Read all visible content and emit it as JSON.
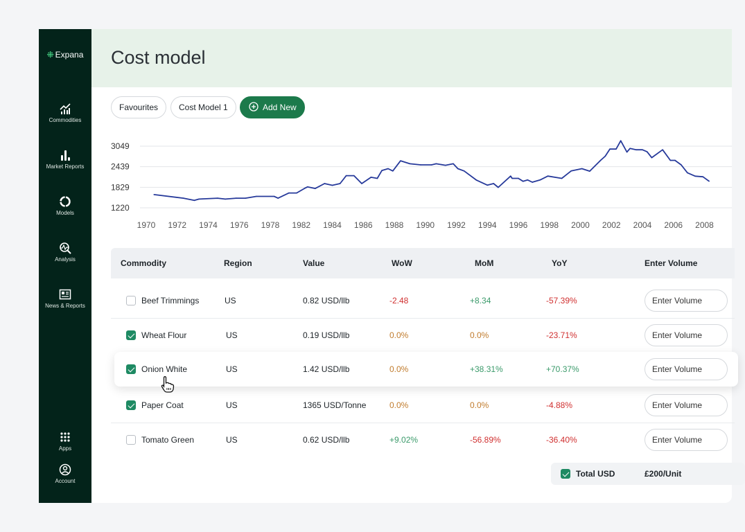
{
  "brand": {
    "name": "Expana"
  },
  "sidebar": {
    "items": [
      {
        "label": "Commodities",
        "icon": "chart-line-bars-icon"
      },
      {
        "label": "Market Reports",
        "icon": "bar-chart-icon"
      },
      {
        "label": "Models",
        "icon": "donut-icon"
      },
      {
        "label": "Analysis",
        "icon": "magnify-pulse-icon"
      },
      {
        "label": "News & Reports",
        "icon": "newspaper-icon"
      }
    ],
    "bottom": [
      {
        "label": "Apps",
        "icon": "grid-icon"
      },
      {
        "label": "Account",
        "icon": "user-circle-icon"
      }
    ]
  },
  "header": {
    "title": "Cost model"
  },
  "tabs": [
    {
      "label": "Favourites"
    },
    {
      "label": "Cost Model 1"
    }
  ],
  "add_new_label": "Add New",
  "colors": {
    "sidebar": "#03231a",
    "accent": "#1c7a4b",
    "line": "#26399a",
    "negative": "#d03030",
    "positive": "#3a9a6a",
    "neutral": "#c07b2c"
  },
  "chart_data": {
    "type": "line",
    "title": "",
    "xlabel": "",
    "ylabel": "",
    "y_ticks": [
      1220,
      1829,
      2439,
      3049
    ],
    "x_ticks": [
      "1970",
      "1972",
      "1974",
      "1976",
      "1978",
      "1982",
      "1984",
      "1986",
      "1988",
      "1990",
      "1992",
      "1994",
      "1996",
      "1998",
      "2000",
      "2002",
      "2004",
      "2006",
      "2008"
    ],
    "grid": true,
    "series": [
      {
        "x": [
          1970.5,
          1972.4,
          1973.1,
          1973.4,
          1974.6,
          1975.1,
          1975.8,
          1976.4,
          1977.1,
          1978.5,
          1979.0,
          1980.4,
          1981.4,
          1982.2,
          1982.4,
          1982.9,
          1983.5,
          1984.0,
          1984.5,
          1984.9,
          1985.4,
          1985.9,
          1986.5,
          1986.9,
          1987.2,
          1987.6,
          1987.9,
          1988.4,
          1989.0,
          1989.7,
          1990.4,
          1990.7,
          1991.3,
          1991.8,
          1992.1,
          1992.5,
          1993.3,
          1994.0,
          1994.4,
          1994.7,
          1995.5,
          1995.6,
          1996.0,
          1996.3,
          1996.6,
          1996.9,
          1997.4,
          1997.9,
          1998.8,
          1999.4,
          2000.1,
          2000.6,
          2001.3,
          2001.6,
          2001.9,
          2002.3,
          2002.6,
          2003.0,
          2003.2,
          2003.6,
          2004.0,
          2004.3,
          2004.6,
          2005.3,
          2005.8,
          2006.1,
          2006.5,
          2006.9,
          2007.4,
          2007.9,
          2008.3
        ],
        "y": [
          1613,
          1506,
          1439,
          1479,
          1506,
          1479,
          1506,
          1506,
          1559,
          1559,
          1506,
          1660,
          1660,
          1793,
          1840,
          1793,
          1940,
          1887,
          1940,
          2174,
          2174,
          1940,
          2127,
          2094,
          2328,
          2381,
          2314,
          2615,
          2528,
          2495,
          2495,
          2528,
          2481,
          2528,
          2381,
          2314,
          2040,
          1893,
          1940,
          1826,
          2161,
          2094,
          2094,
          2007,
          2047,
          1980,
          2047,
          2161,
          2094,
          2314,
          2381,
          2307,
          2628,
          2750,
          2962,
          2962,
          3209,
          2875,
          2982,
          2942,
          2942,
          2882,
          2708,
          2942,
          2628,
          2628,
          2495,
          2260,
          2160,
          2140,
          2010
        ]
      }
    ]
  },
  "table": {
    "headers": [
      "Commodity",
      "Region",
      "Value",
      "WoW",
      "MoM",
      "YoY",
      "Enter Volume"
    ],
    "rows": [
      {
        "checked": false,
        "commodity": "Beef Trimmings",
        "region": "US",
        "value": "0.82 USD/llb",
        "wow": "-2.48",
        "mom": "+8.34",
        "yoy": "-57.39%",
        "wow_c": "red",
        "mom_c": "green",
        "yoy_c": "red",
        "volume_placeholder": "Enter Volume"
      },
      {
        "checked": true,
        "commodity": "Wheat Flour",
        "region": "US",
        "value": "0.19 USD/llb",
        "wow": "0.0%",
        "mom": "0.0%",
        "yoy": "-23.71%",
        "wow_c": "orange",
        "mom_c": "orange",
        "yoy_c": "red",
        "volume_placeholder": "Enter Volume"
      },
      {
        "checked": true,
        "commodity": "Onion White",
        "region": "US",
        "value": "1.42 USD/llb",
        "wow": "0.0%",
        "mom": "+38.31%",
        "yoy": "+70.37%",
        "wow_c": "orange",
        "mom_c": "green",
        "yoy_c": "green",
        "volume_placeholder": "Enter Volume"
      },
      {
        "checked": true,
        "commodity": "Paper Coat",
        "region": "US",
        "value": "1365 USD/Tonne",
        "wow": "0.0%",
        "mom": "0.0%",
        "yoy": "-4.88%",
        "wow_c": "orange",
        "mom_c": "orange",
        "yoy_c": "red",
        "volume_placeholder": "Enter Volume"
      },
      {
        "checked": false,
        "commodity": "Tomato Green",
        "region": "US",
        "value": "0.62 USD/llb",
        "wow": "+9.02%",
        "mom": "-56.89%",
        "yoy": "-36.40%",
        "wow_c": "green",
        "mom_c": "red",
        "yoy_c": "red",
        "volume_placeholder": "Enter Volume"
      }
    ]
  },
  "total": {
    "checked": true,
    "label": "Total USD",
    "value": "£200/Unit"
  }
}
